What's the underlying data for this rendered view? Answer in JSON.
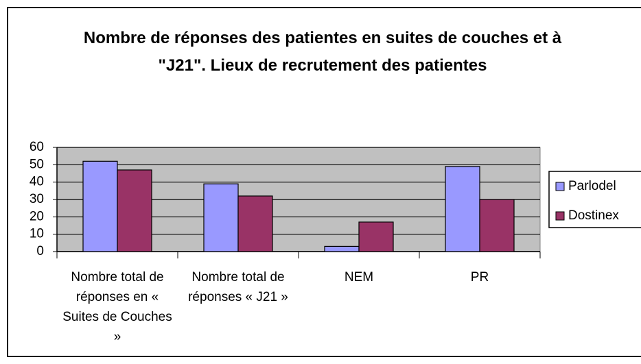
{
  "chart_data": {
    "type": "bar",
    "title": "Nombre de réponses des patientes en suites de couches et à \"J21\". Lieux de recrutement des patientes",
    "categories": [
      "Nombre total de réponses en « Suites de Couches »",
      "Nombre total de réponses « J21 »",
      "NEM",
      "PR"
    ],
    "series": [
      {
        "name": "Parlodel",
        "color": "#9999ff",
        "values": [
          52,
          39,
          3,
          49
        ]
      },
      {
        "name": "Dostinex",
        "color": "#993366",
        "values": [
          47,
          32,
          17,
          30
        ]
      }
    ],
    "ylim": [
      0,
      60
    ],
    "yticks": [
      0,
      10,
      20,
      30,
      40,
      50,
      60
    ],
    "grid": true,
    "legend": "right"
  }
}
